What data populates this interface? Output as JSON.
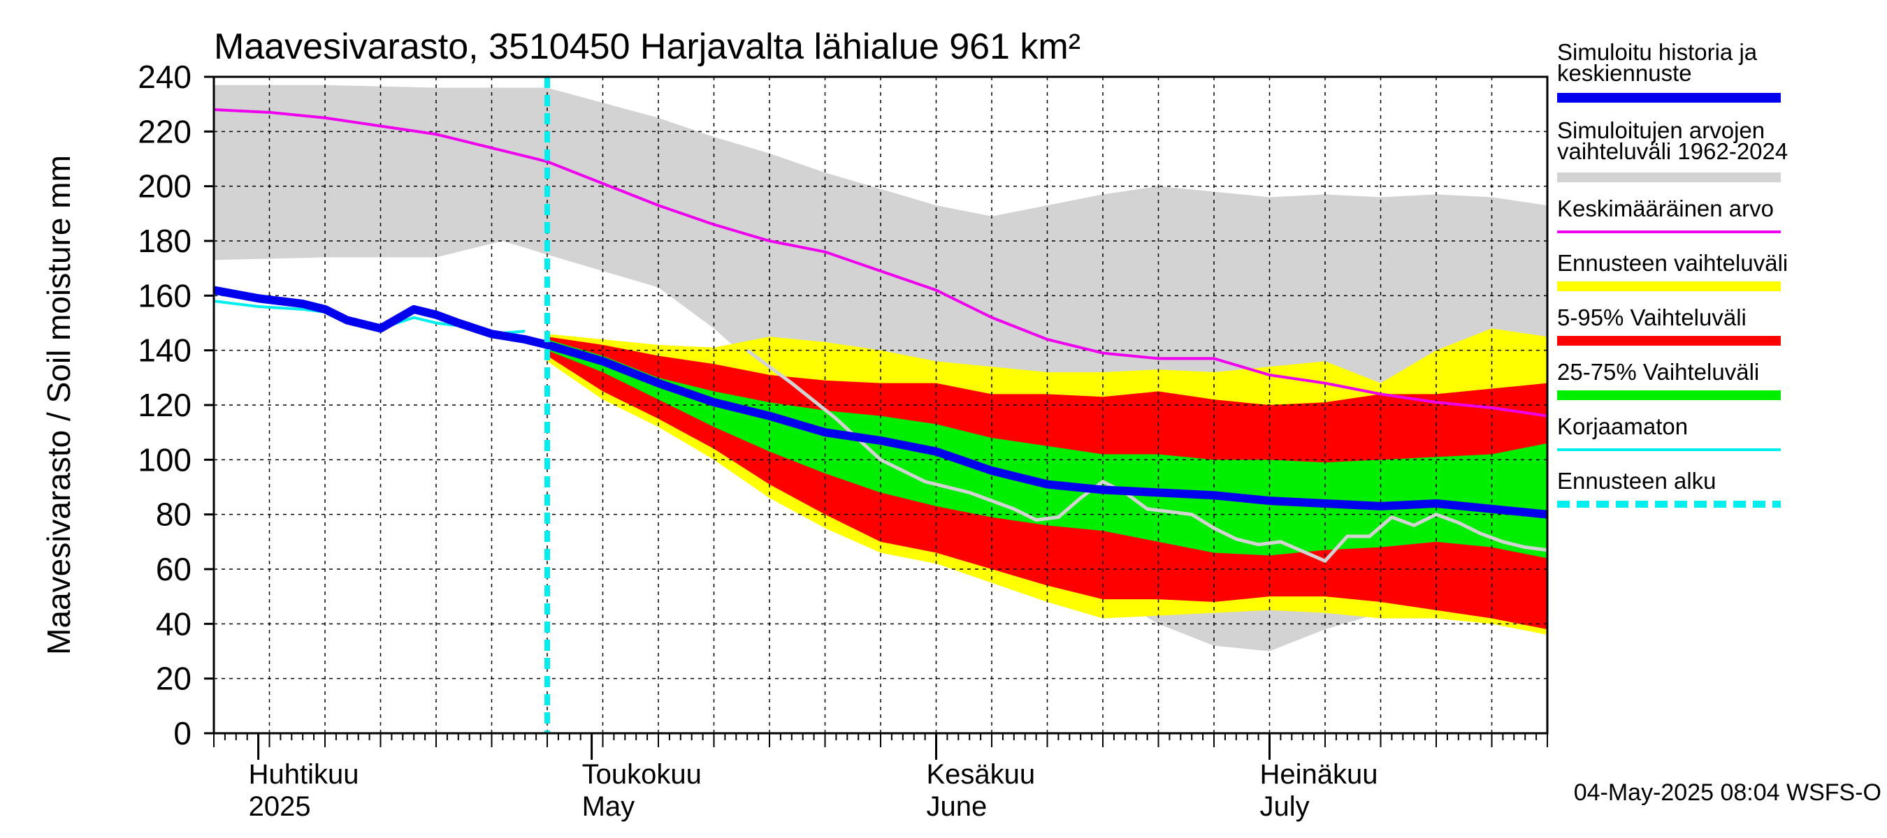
{
  "chart_data": {
    "type": "area",
    "title": "Maavesivarasto, 3510450 Harjavalta lähialue 961 km²",
    "ylabel": "Maavesivarasto / Soil moisture   mm",
    "ylim": [
      0,
      240
    ],
    "yticks": [
      0,
      20,
      40,
      60,
      80,
      100,
      120,
      140,
      160,
      180,
      200,
      220,
      240
    ],
    "x_unit": "day (day 0 = 2025-03-28)",
    "xlim": [
      0,
      120
    ],
    "month_labels": [
      {
        "day": 4,
        "line1": "Huhtikuu",
        "line2": "2025"
      },
      {
        "day": 34,
        "line1": "Toukokuu",
        "line2": "May"
      },
      {
        "day": 65,
        "line1": "Kesäkuu",
        "line2": "June"
      },
      {
        "day": 95,
        "line1": "Heinäkuu",
        "line2": "July"
      }
    ],
    "forecast_start_day": 30,
    "timestamp": "04-May-2025 08:04 WSFS-O",
    "legend": [
      {
        "key": "hist",
        "label": "Simuloitu historia ja keskiennuste",
        "color": "#0000ee",
        "style": "thick"
      },
      {
        "key": "range",
        "label": "Simuloitujen arvojen vaihteluväli 1962-2024",
        "color": "#d3d3d3",
        "style": "thick"
      },
      {
        "key": "mean",
        "label": "Keskimääräinen arvo",
        "color": "#ee00ee",
        "style": "thin"
      },
      {
        "key": "ens",
        "label": "Ennusteen vaihteluväli",
        "color": "#ffff00",
        "style": "thick"
      },
      {
        "key": "p5_95",
        "label": "5-95% Vaihteluväli",
        "color": "#ff0000",
        "style": "thick"
      },
      {
        "key": "p25_75",
        "label": "25-75% Vaihteluväli",
        "color": "#00ee00",
        "style": "thick"
      },
      {
        "key": "uncorr",
        "label": "Korjaamaton",
        "color": "#00eeee",
        "style": "thin"
      },
      {
        "key": "fstart",
        "label": "Ennusteen alku",
        "color": "#00eeee",
        "style": "dashed"
      }
    ],
    "series": {
      "hist_range": {
        "x": [
          0,
          10,
          20,
          26,
          30,
          40,
          45,
          50,
          55,
          60,
          65,
          70,
          75,
          80,
          85,
          90,
          95,
          100,
          105,
          110,
          115,
          120
        ],
        "upper": [
          237,
          237,
          236,
          236,
          236,
          225,
          218,
          212,
          205,
          199,
          193,
          189,
          193,
          197,
          200,
          198,
          196,
          197,
          196,
          197,
          196,
          193
        ],
        "lower": [
          173,
          174,
          174,
          180,
          175,
          163,
          148,
          130,
          110,
          92,
          85,
          72,
          60,
          52,
          40,
          32,
          30,
          38,
          44,
          46,
          52,
          55
        ]
      },
      "mean": {
        "x": [
          0,
          5,
          10,
          15,
          20,
          25,
          30,
          35,
          40,
          45,
          50,
          55,
          60,
          65,
          70,
          75,
          80,
          85,
          90,
          95,
          100,
          105,
          110,
          115,
          120
        ],
        "y": [
          228,
          227,
          225,
          222,
          219,
          214,
          209,
          201,
          193,
          186,
          180,
          176,
          169,
          162,
          152,
          144,
          139,
          137,
          137,
          131,
          128,
          124,
          121,
          119,
          116
        ]
      },
      "simulated_history": {
        "x": [
          0,
          4,
          8,
          10,
          12,
          15,
          18,
          20,
          22,
          25,
          28,
          30
        ],
        "y": [
          162,
          159,
          157,
          155,
          151,
          148,
          155,
          153,
          150,
          146,
          144,
          142
        ]
      },
      "median_forecast": {
        "x": [
          30,
          35,
          40,
          45,
          50,
          55,
          60,
          65,
          70,
          75,
          80,
          85,
          90,
          95,
          100,
          105,
          110,
          115,
          120
        ],
        "y": [
          142,
          136,
          128,
          121,
          116,
          110,
          107,
          103,
          96,
          91,
          89,
          88,
          87,
          85,
          84,
          83,
          84,
          82,
          80
        ]
      },
      "uncorrected": {
        "x": [
          0,
          4,
          8,
          10,
          12,
          15,
          18,
          20,
          22,
          25,
          28
        ],
        "y": [
          158,
          156,
          155,
          154,
          151,
          148,
          152,
          150,
          149,
          146,
          147
        ]
      },
      "ensemble": {
        "x": [
          30,
          35,
          40,
          45,
          50,
          55,
          60,
          65,
          70,
          75,
          80,
          85,
          90,
          95,
          100,
          105,
          110,
          115,
          120
        ],
        "upper": [
          146,
          144,
          142,
          141,
          145,
          143,
          140,
          136,
          134,
          132,
          132,
          133,
          132,
          134,
          136,
          128,
          140,
          148,
          145
        ],
        "lower": [
          136,
          122,
          112,
          100,
          86,
          75,
          66,
          62,
          55,
          48,
          42,
          43,
          44,
          45,
          44,
          42,
          42,
          40,
          36
        ]
      },
      "p5_95": {
        "x": [
          30,
          35,
          40,
          45,
          50,
          55,
          60,
          65,
          70,
          75,
          80,
          85,
          90,
          95,
          100,
          105,
          110,
          115,
          120
        ],
        "upper": [
          145,
          142,
          138,
          135,
          131,
          129,
          128,
          128,
          124,
          124,
          123,
          125,
          122,
          120,
          121,
          124,
          124,
          126,
          128
        ],
        "lower": [
          138,
          125,
          115,
          104,
          91,
          80,
          70,
          66,
          60,
          54,
          49,
          49,
          48,
          50,
          50,
          48,
          45,
          42,
          38
        ]
      },
      "p25_75": {
        "x": [
          30,
          35,
          40,
          45,
          50,
          55,
          60,
          65,
          70,
          75,
          80,
          85,
          90,
          95,
          100,
          105,
          110,
          115,
          120
        ],
        "upper": [
          144,
          138,
          130,
          125,
          121,
          118,
          116,
          113,
          108,
          105,
          102,
          102,
          100,
          100,
          99,
          100,
          101,
          102,
          106
        ],
        "lower": [
          140,
          132,
          122,
          112,
          103,
          95,
          88,
          83,
          79,
          76,
          74,
          70,
          66,
          65,
          67,
          68,
          70,
          68,
          64
        ]
      },
      "historical_trace": {
        "x": [
          48,
          52,
          56,
          60,
          64,
          68,
          72,
          74,
          76,
          78,
          80,
          82,
          84,
          88,
          90,
          92,
          94,
          96,
          100,
          102,
          104,
          106,
          108,
          110,
          112,
          114,
          116,
          118,
          120
        ],
        "y": [
          140,
          128,
          115,
          100,
          92,
          88,
          82,
          78,
          79,
          86,
          92,
          88,
          82,
          80,
          75,
          71,
          69,
          70,
          63,
          72,
          72,
          79,
          76,
          80,
          77,
          73,
          70,
          68,
          67
        ]
      }
    }
  }
}
